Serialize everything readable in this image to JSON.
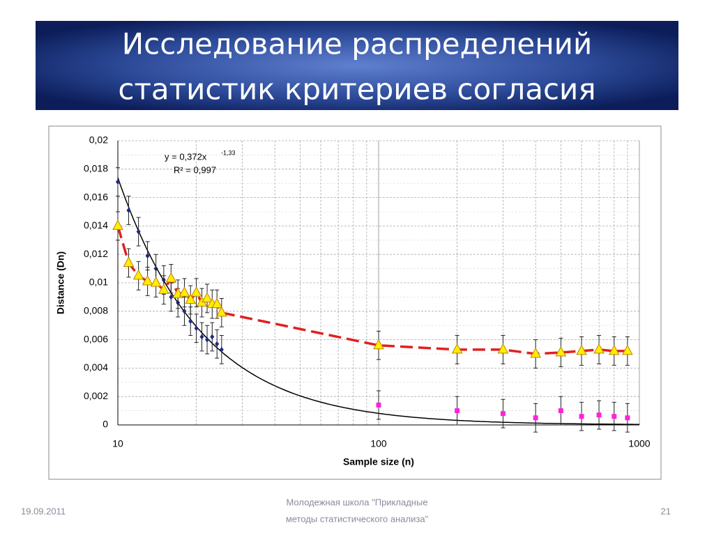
{
  "title": [
    "Исследование распределений",
    "статистик критериев согласия"
  ],
  "footer": {
    "date": "19.09.2011",
    "center": [
      "Молодежная школа \"Прикладные",
      "методы статистического анализа\""
    ],
    "page": "21"
  },
  "chart_data": {
    "type": "scatter",
    "xlabel": "Sample size (n)",
    "ylabel": "Distance (Dn)",
    "xlog": true,
    "xlim": [
      10,
      1000
    ],
    "xticks": [
      10,
      100,
      1000
    ],
    "xticks_minor": [
      20,
      30,
      40,
      50,
      60,
      70,
      80,
      90,
      200,
      300,
      400,
      500,
      600,
      700,
      800,
      900
    ],
    "ylim": [
      0,
      0.02
    ],
    "yticks": [
      0,
      {
        "value": 0.002,
        "label": "0,002"
      },
      {
        "value": 0.004,
        "label": "0,004"
      },
      {
        "value": 0.006,
        "label": "0,006"
      },
      {
        "value": 0.008,
        "label": "0,008"
      },
      {
        "value": 0.01,
        "label": "0,01"
      },
      {
        "value": 0.012,
        "label": "0,012"
      },
      {
        "value": 0.014,
        "label": "0,014"
      },
      {
        "value": 0.016,
        "label": "0,016"
      },
      {
        "value": 0.018,
        "label": "0,018"
      },
      {
        "value": 0.02,
        "label": "0,02"
      }
    ],
    "grid": true,
    "series": [
      {
        "marker": "diamond",
        "color": "#1f2a80",
        "x": [
          10,
          11,
          12,
          13,
          14,
          15,
          16,
          17,
          18,
          19,
          20,
          21,
          22,
          23,
          24,
          25
        ],
        "values": [
          0.0171,
          0.0151,
          0.0136,
          0.0119,
          0.011,
          0.0102,
          0.009,
          0.0086,
          0.008,
          0.0073,
          0.0068,
          0.0062,
          0.006,
          0.0062,
          0.0057,
          0.0053
        ],
        "errors": [
          0.001,
          0.001,
          0.001,
          0.001,
          0.001,
          0.001,
          0.001,
          0.001,
          0.001,
          0.001,
          0.001,
          0.001,
          0.001,
          0.001,
          0.001,
          0.001
        ]
      },
      {
        "marker": "triangle",
        "color": "#ffee00",
        "line_color": "#e02020",
        "line": "dashed",
        "x": [
          10,
          11,
          12,
          13,
          14,
          15,
          16,
          17,
          18,
          19,
          20,
          21,
          22,
          23,
          24,
          25,
          100,
          200,
          300,
          400,
          500,
          600,
          700,
          800,
          900
        ],
        "values": [
          0.014,
          0.0114,
          0.0105,
          0.0101,
          0.01,
          0.0095,
          0.0103,
          0.0092,
          0.0093,
          0.0088,
          0.0093,
          0.0086,
          0.0089,
          0.0085,
          0.0085,
          0.0079,
          0.0056,
          0.0053,
          0.0053,
          0.005,
          0.0051,
          0.0052,
          0.0053,
          0.0052,
          0.0052
        ],
        "errors": [
          0.001,
          0.001,
          0.001,
          0.001,
          0.001,
          0.001,
          0.001,
          0.001,
          0.001,
          0.001,
          0.001,
          0.001,
          0.001,
          0.001,
          0.001,
          0.001,
          0.001,
          0.001,
          0.001,
          0.001,
          0.001,
          0.001,
          0.001,
          0.001,
          0.001
        ]
      },
      {
        "marker": "square",
        "color": "#ff22dd",
        "x": [
          100,
          200,
          300,
          400,
          500,
          600,
          700,
          800,
          900
        ],
        "values": [
          0.0014,
          0.001,
          0.0008,
          0.0005,
          0.001,
          0.0006,
          0.0007,
          0.0006,
          0.0005
        ],
        "errors": [
          0.001,
          0.001,
          0.001,
          0.001,
          0.001,
          0.001,
          0.001,
          0.001,
          0.001
        ]
      }
    ],
    "trendline": {
      "a": 0.372,
      "b": -1.33,
      "color": "#000000"
    },
    "annotations": [
      "y = 0,372x",
      "-1,33",
      "R² = 0,997"
    ]
  }
}
